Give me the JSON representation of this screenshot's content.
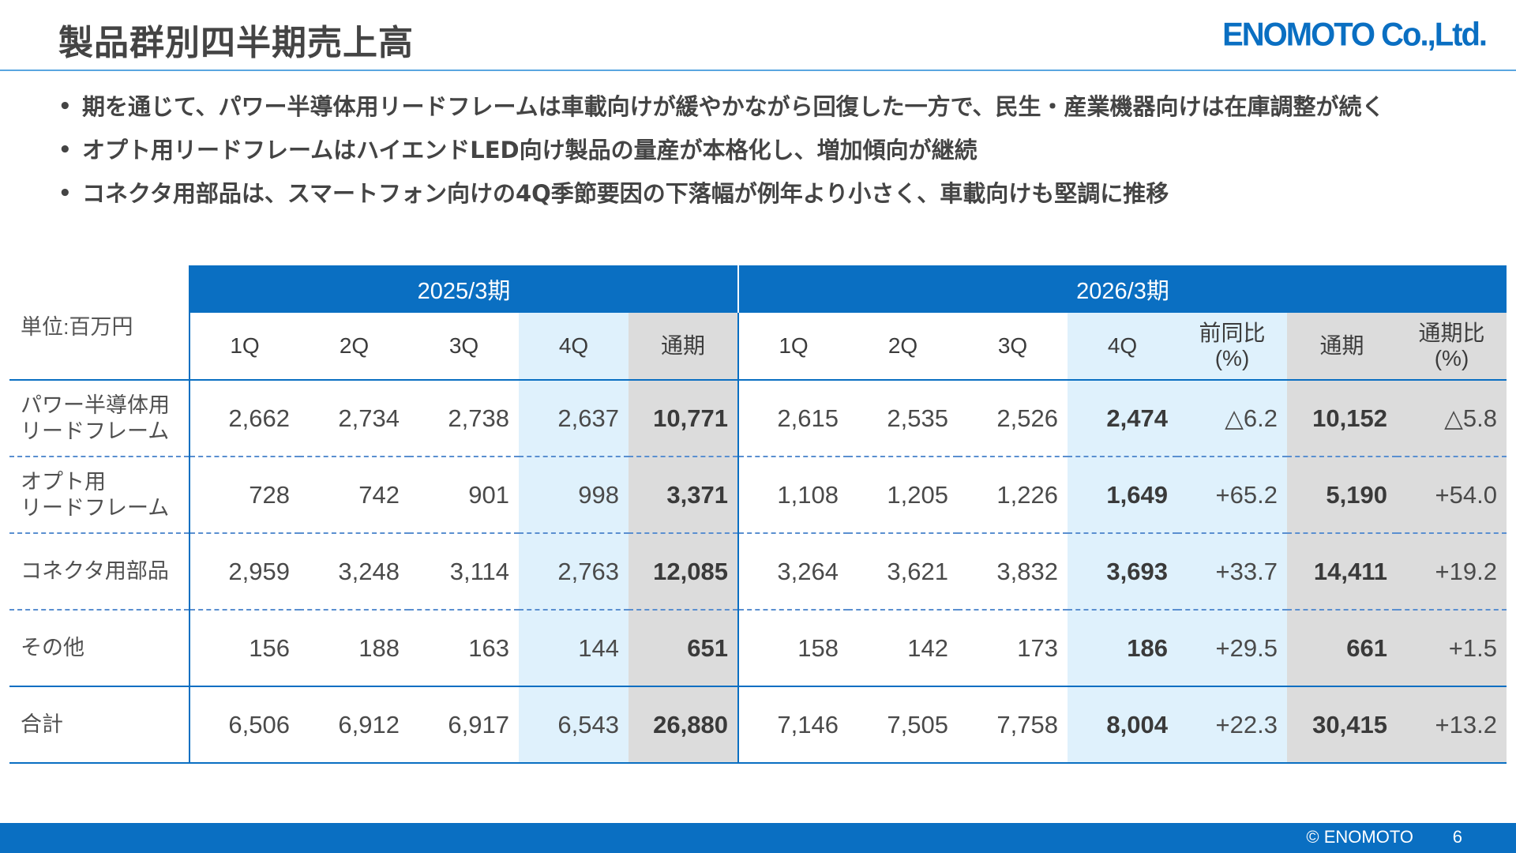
{
  "header": {
    "title": "製品群別四半期売上高",
    "logo_text": "ENOMOTO Co.,Ltd."
  },
  "bullets": [
    "期を通じて、パワー半導体用リードフレームは車載向けが緩やかながら回復した一方で、民生・産業機器向けは在庫調整が続く",
    "オプト用リードフレームはハイエンドLED向け製品の量産が本格化し、増加傾向が継続",
    "コネクタ用部品は、スマートフォン向けの4Q季節要因の下落幅が例年より小さく、車載向けも堅調に推移"
  ],
  "table": {
    "unit_label": "単位:百万円",
    "periods": [
      "2025/3期",
      "2026/3期"
    ],
    "columns": {
      "q1": "1Q",
      "q2": "2Q",
      "q3": "3Q",
      "q4": "4Q",
      "full_year": "通期",
      "yoy_line1": "前同比",
      "yoy_line2": "(%)",
      "fy_ratio_line1": "通期比",
      "fy_ratio_line2": "(%)"
    },
    "rows": [
      {
        "label_line1": "パワー半導体用",
        "label_line2": "リードフレーム",
        "prev": [
          "2,662",
          "2,734",
          "2,738",
          "2,637",
          "10,771"
        ],
        "curr": [
          "2,615",
          "2,535",
          "2,526",
          "2,474",
          "△6.2",
          "10,152",
          "△5.8"
        ]
      },
      {
        "label_line1": "オプト用",
        "label_line2": "リードフレーム",
        "prev": [
          "728",
          "742",
          "901",
          "998",
          "3,371"
        ],
        "curr": [
          "1,108",
          "1,205",
          "1,226",
          "1,649",
          "+65.2",
          "5,190",
          "+54.0"
        ]
      },
      {
        "label_line1": "コネクタ用部品",
        "label_line2": "",
        "prev": [
          "2,959",
          "3,248",
          "3,114",
          "2,763",
          "12,085"
        ],
        "curr": [
          "3,264",
          "3,621",
          "3,832",
          "3,693",
          "+33.7",
          "14,411",
          "+19.2"
        ]
      },
      {
        "label_line1": "その他",
        "label_line2": "",
        "prev": [
          "156",
          "188",
          "163",
          "144",
          "651"
        ],
        "curr": [
          "158",
          "142",
          "173",
          "186",
          "+29.5",
          "661",
          "+1.5"
        ]
      },
      {
        "label_line1": "合計",
        "label_line2": "",
        "prev": [
          "6,506",
          "6,912",
          "6,917",
          "6,543",
          "26,880"
        ],
        "curr": [
          "7,146",
          "7,505",
          "7,758",
          "8,004",
          "+22.3",
          "30,415",
          "+13.2"
        ]
      }
    ]
  },
  "footer": {
    "copyright": "© ENOMOTO",
    "page_number": "6"
  },
  "colors": {
    "brand_blue": "#0a6fc2",
    "highlight_light_blue": "#dff1fc",
    "highlight_gray": "#dcdcdc"
  }
}
